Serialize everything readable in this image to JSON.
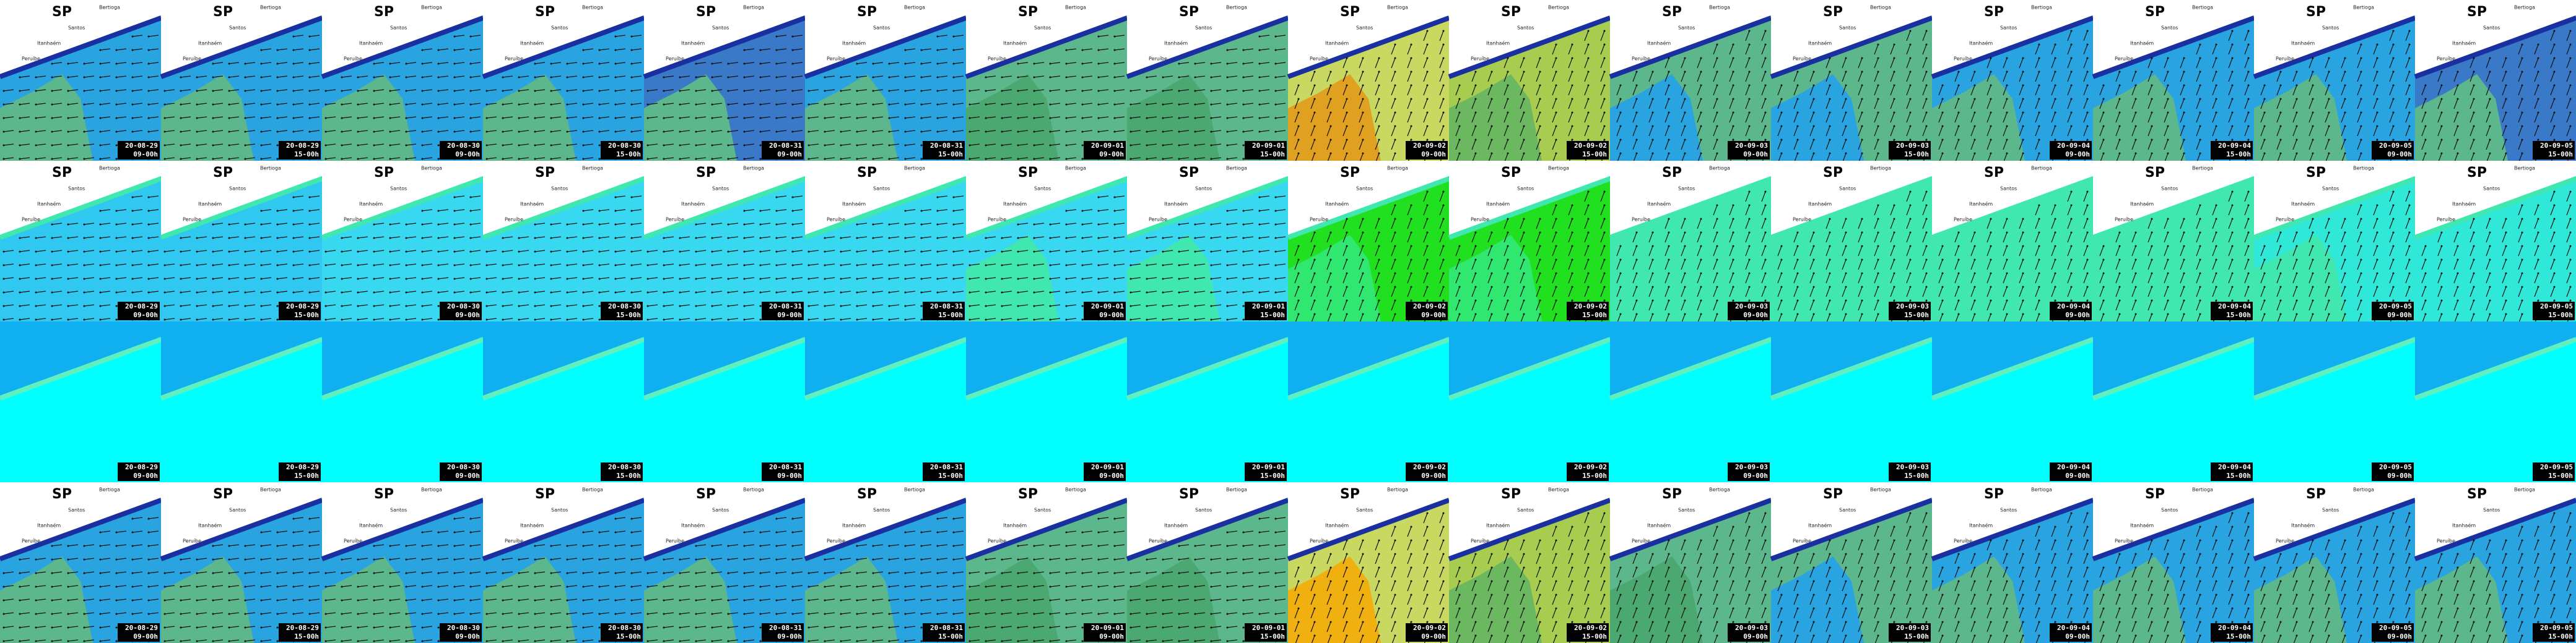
{
  "dates": [
    [
      "20-08-29",
      "09-00h"
    ],
    [
      "20-08-29",
      "15-00h"
    ],
    [
      "20-08-30",
      "09-00h"
    ],
    [
      "20-08-30",
      "15-00h"
    ],
    [
      "20-08-31",
      "09-00h"
    ],
    [
      "20-08-31",
      "15-00h"
    ],
    [
      "20-09-01",
      "09-00h"
    ],
    [
      "20-09-01",
      "15-00h"
    ],
    [
      "20-09-02",
      "09-00h"
    ],
    [
      "20-09-02",
      "15-00h"
    ],
    [
      "20-09-03",
      "09-00h"
    ],
    [
      "20-09-03",
      "15-00h"
    ],
    [
      "20-09-04",
      "09-00h"
    ],
    [
      "20-09-04",
      "15-00h"
    ],
    [
      "20-09-05",
      "09-00h"
    ],
    [
      "20-09-05",
      "15-00h"
    ]
  ],
  "places": [
    "Bertioga",
    "Santos",
    "Itanhaém",
    "Peruíbe"
  ],
  "rows": [
    {
      "title": "SP",
      "land": "#ffffff",
      "coast": "#1a2fa0",
      "colors": [
        [
          "#2aa4e0",
          "#5cb88c"
        ],
        [
          "#2aa4e0",
          "#5cb88c"
        ],
        [
          "#2aa4e0",
          "#5cb88c"
        ],
        [
          "#2aa4e0",
          "#5cb88c"
        ],
        [
          "#3a78c8",
          "#5cb88c"
        ],
        [
          "#2aa4e0",
          "#5cb88c"
        ],
        [
          "#5cb88c",
          "#4aa870"
        ],
        [
          "#5cb88c",
          "#4aa870"
        ],
        [
          "#c8d860",
          "#e0a020"
        ],
        [
          "#a8cc50",
          "#6cb860"
        ],
        [
          "#5cb88c",
          "#2aa4e0"
        ],
        [
          "#5cb88c",
          "#2aa4e0"
        ],
        [
          "#2aa4e0",
          "#5cb88c"
        ],
        [
          "#2aa4e0",
          "#5cb88c"
        ],
        [
          "#2aa4e0",
          "#5cb88c"
        ],
        [
          "#3a78c8",
          "#5cb88c"
        ]
      ]
    },
    {
      "title": "SP",
      "land": "#ffffff",
      "coast": "#40e8b0",
      "colors": [
        [
          "#30c8f0",
          "#30c8f0"
        ],
        [
          "#30c8f0",
          "#30c8f0"
        ],
        [
          "#38d8f0",
          "#38d8f0"
        ],
        [
          "#38d8f0",
          "#38d8f0"
        ],
        [
          "#38d8f0",
          "#38d8f0"
        ],
        [
          "#38d8f0",
          "#38d8f0"
        ],
        [
          "#38d8f0",
          "#40e8b0"
        ],
        [
          "#38d8f0",
          "#40e8b0"
        ],
        [
          "#20e020",
          "#30e870"
        ],
        [
          "#20e020",
          "#30e870"
        ],
        [
          "#40e8b0",
          "#40e8b0"
        ],
        [
          "#40e8b0",
          "#40e8b0"
        ],
        [
          "#40e8b0",
          "#40e8b0"
        ],
        [
          "#40e8b0",
          "#40e8b0"
        ],
        [
          "#30e8d8",
          "#40e8b0"
        ],
        [
          "#30e8d8",
          "#30e8d8"
        ]
      ]
    },
    {
      "land": "#10b0f0",
      "coast": "#60f0c0",
      "colors": [
        [
          "#00ffff",
          "#00ffff"
        ],
        [
          "#00ffff",
          "#00ffff"
        ],
        [
          "#00ffff",
          "#00ffff"
        ],
        [
          "#00ffff",
          "#00ffff"
        ],
        [
          "#00ffff",
          "#00ffff"
        ],
        [
          "#00ffff",
          "#00ffff"
        ],
        [
          "#00ffff",
          "#00ffff"
        ],
        [
          "#00ffff",
          "#00ffff"
        ],
        [
          "#00ffff",
          "#00ffff"
        ],
        [
          "#00ffff",
          "#00ffff"
        ],
        [
          "#00ffff",
          "#00ffff"
        ],
        [
          "#00ffff",
          "#00ffff"
        ],
        [
          "#00ffff",
          "#00ffff"
        ],
        [
          "#00ffff",
          "#00ffff"
        ],
        [
          "#00ffff",
          "#00ffff"
        ],
        [
          "#00ffff",
          "#00ffff"
        ]
      ]
    },
    {
      "title": "SP",
      "land": "#ffffff",
      "coast": "#1a2fa0",
      "colors": [
        [
          "#2aa4e0",
          "#5cb88c"
        ],
        [
          "#2aa4e0",
          "#5cb88c"
        ],
        [
          "#2aa4e0",
          "#5cb88c"
        ],
        [
          "#2aa4e0",
          "#5cb88c"
        ],
        [
          "#2aa4e0",
          "#5cb88c"
        ],
        [
          "#2aa4e0",
          "#5cb88c"
        ],
        [
          "#5cb88c",
          "#4aa870"
        ],
        [
          "#5cb88c",
          "#4aa870"
        ],
        [
          "#c8d860",
          "#f0b010"
        ],
        [
          "#a8cc50",
          "#6cb860"
        ],
        [
          "#5cb88c",
          "#4aa870"
        ],
        [
          "#5cb88c",
          "#2aa4e0"
        ],
        [
          "#2aa4e0",
          "#5cb88c"
        ],
        [
          "#2aa4e0",
          "#5cb88c"
        ],
        [
          "#2aa4e0",
          "#5cb88c"
        ],
        [
          "#2aa4e0",
          "#5cb88c"
        ]
      ]
    }
  ]
}
